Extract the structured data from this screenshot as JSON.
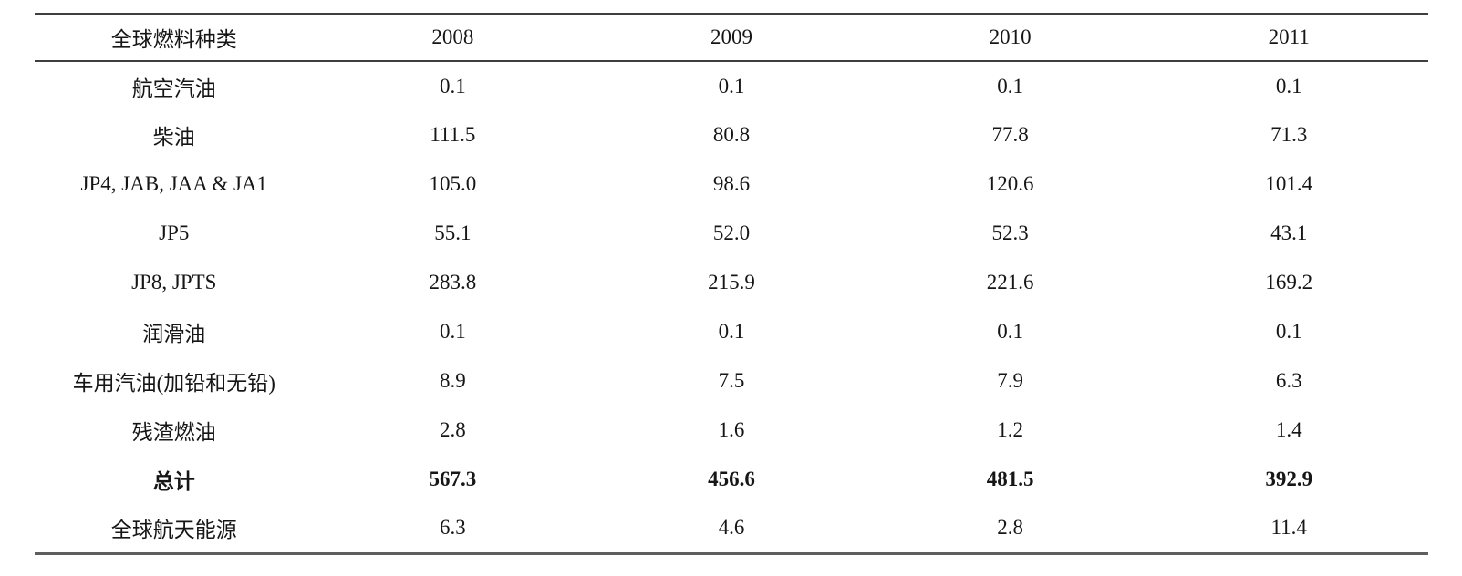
{
  "chart_data": {
    "type": "table",
    "title": "",
    "columns": [
      "全球燃料种类",
      "2008",
      "2009",
      "2010",
      "2011"
    ],
    "rows": [
      {
        "label": "航空汽油",
        "values": [
          "0.1",
          "0.1",
          "0.1",
          "0.1"
        ],
        "bold": false
      },
      {
        "label": "柴油",
        "values": [
          "111.5",
          "80.8",
          "77.8",
          "71.3"
        ],
        "bold": false
      },
      {
        "label": "JP4, JAB, JAA & JA1",
        "values": [
          "105.0",
          "98.6",
          "120.6",
          "101.4"
        ],
        "bold": false
      },
      {
        "label": "JP5",
        "values": [
          "55.1",
          "52.0",
          "52.3",
          "43.1"
        ],
        "bold": false
      },
      {
        "label": "JP8, JPTS",
        "values": [
          "283.8",
          "215.9",
          "221.6",
          "169.2"
        ],
        "bold": false
      },
      {
        "label": "润滑油",
        "values": [
          "0.1",
          "0.1",
          "0.1",
          "0.1"
        ],
        "bold": false
      },
      {
        "label": "车用汽油(加铅和无铅)",
        "values": [
          "8.9",
          "7.5",
          "7.9",
          "6.3"
        ],
        "bold": false
      },
      {
        "label": "残渣燃油",
        "values": [
          "2.8",
          "1.6",
          "1.2",
          "1.4"
        ],
        "bold": false
      },
      {
        "label": "总计",
        "values": [
          "567.3",
          "456.6",
          "481.5",
          "392.9"
        ],
        "bold": true
      },
      {
        "label": "全球航天能源",
        "values": [
          "6.3",
          "4.6",
          "2.8",
          "11.4"
        ],
        "bold": false
      }
    ]
  },
  "colors": {
    "background": "#ffffff",
    "text": "#161616",
    "rule_top": "#3f3f3f",
    "rule_bottom": "#5e5e5e"
  }
}
